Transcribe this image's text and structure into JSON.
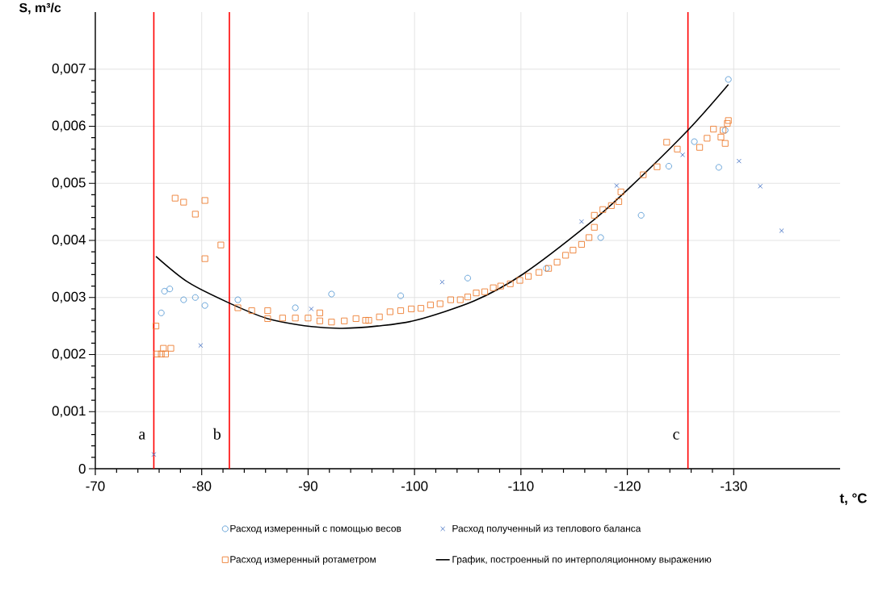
{
  "chart_data": {
    "type": "scatter",
    "xlabel": "t, °C",
    "ylabel": "S, m³/c",
    "xlim": [
      -70,
      -140
    ],
    "ylim": [
      0,
      0.008
    ],
    "xticks": [
      -70,
      -80,
      -90,
      -100,
      -110,
      -120,
      -130
    ],
    "yticks": [
      {
        "value": 0,
        "label": "0"
      },
      {
        "value": 0.001,
        "label": "0,001"
      },
      {
        "value": 0.002,
        "label": "0,002"
      },
      {
        "value": 0.003,
        "label": "0,003"
      },
      {
        "value": 0.004,
        "label": "0,004"
      },
      {
        "value": 0.005,
        "label": "0,005"
      },
      {
        "value": 0.006,
        "label": "0,006"
      },
      {
        "value": 0.007,
        "label": "0,007"
      }
    ],
    "grid": true,
    "legend": "bottom",
    "series": [
      {
        "name": "Расход измеренный с помощью весов",
        "marker": "circle",
        "color": "#5b9bd5",
        "x": [
          -76.2,
          -76.5,
          -77.0,
          -78.3,
          -79.4,
          -80.3,
          -83.4,
          -88.8,
          -92.2,
          -98.7,
          -105.0,
          -112.4,
          -117.5,
          -121.3,
          -123.9,
          -126.3,
          -128.6,
          -129.2,
          -129.5
        ],
        "values": [
          0.00273,
          0.00311,
          0.00315,
          0.00296,
          0.003,
          0.00286,
          0.00296,
          0.00282,
          0.00306,
          0.00303,
          0.00334,
          0.00351,
          0.00405,
          0.00444,
          0.0053,
          0.00573,
          0.00528,
          0.00593,
          0.00682
        ]
      },
      {
        "name": "Расход полученный из теплового баланса",
        "marker": "cross",
        "color": "#4472c4",
        "x": [
          -75.5,
          -79.9,
          -90.3,
          -102.6,
          -115.7,
          -119.0,
          -125.2,
          -130.5,
          -132.5,
          -134.5
        ],
        "values": [
          0.00025,
          0.00216,
          0.0028,
          0.00327,
          0.00433,
          0.00496,
          0.0055,
          0.00539,
          0.00495,
          0.00417
        ]
      },
      {
        "name": "Расход измеренный ротаметром",
        "marker": "square",
        "color": "#ed7d31",
        "x": [
          -75.7,
          -75.8,
          -76.2,
          -76.6,
          -76.4,
          -77.1,
          -77.5,
          -78.3,
          -79.4,
          -80.3,
          -80.3,
          -81.8,
          -83.4,
          -84.7,
          -86.2,
          -86.2,
          -87.6,
          -88.8,
          -90.0,
          -91.1,
          -91.1,
          -92.2,
          -93.4,
          -94.5,
          -95.4,
          -95.7,
          -96.7,
          -97.7,
          -98.7,
          -99.7,
          -100.6,
          -101.5,
          -102.4,
          -103.4,
          -104.3,
          -105.0,
          -105.8,
          -106.6,
          -107.4,
          -108.1,
          -109.0,
          -109.9,
          -110.7,
          -111.7,
          -112.6,
          -113.4,
          -114.2,
          -114.9,
          -115.7,
          -116.4,
          -116.9,
          -116.9,
          -117.7,
          -118.5,
          -119.2,
          -119.4,
          -121.5,
          -122.8,
          -123.7,
          -124.7,
          -126.8,
          -127.5,
          -128.1,
          -128.8,
          -129.2,
          -129.4,
          -129.5,
          -129.0
        ],
        "values": [
          0.0025,
          0.00201,
          0.00201,
          0.00201,
          0.00211,
          0.00211,
          0.00474,
          0.00467,
          0.00446,
          0.0047,
          0.00368,
          0.00392,
          0.00282,
          0.00277,
          0.00277,
          0.00263,
          0.00264,
          0.00264,
          0.00264,
          0.00273,
          0.00259,
          0.00257,
          0.00259,
          0.00263,
          0.0026,
          0.0026,
          0.00266,
          0.00275,
          0.00277,
          0.0028,
          0.00281,
          0.00287,
          0.00289,
          0.00296,
          0.00296,
          0.00301,
          0.00308,
          0.0031,
          0.00317,
          0.0032,
          0.00324,
          0.0033,
          0.00337,
          0.00344,
          0.00351,
          0.00362,
          0.00374,
          0.00383,
          0.00393,
          0.00405,
          0.00423,
          0.00444,
          0.00454,
          0.00461,
          0.00468,
          0.00485,
          0.00515,
          0.00529,
          0.00572,
          0.0056,
          0.00563,
          0.00579,
          0.00595,
          0.00581,
          0.0057,
          0.00605,
          0.0061,
          0.00593
        ]
      },
      {
        "name": "График, построенный по интерполяционному выражению",
        "type": "line",
        "marker": "none",
        "line_style": "solid",
        "color": "#000000",
        "x": [
          -75.7,
          -78.7,
          -82.5,
          -86.2,
          -90.3,
          -93.2,
          -96.5,
          -100.1,
          -105.6,
          -110.2,
          -116.4,
          -120.2,
          -125.8,
          -129.5
        ],
        "values": [
          0.00372,
          0.00327,
          0.00291,
          0.00263,
          0.00249,
          0.00246,
          0.0025,
          0.0026,
          0.00294,
          0.00341,
          0.00429,
          0.00492,
          0.00595,
          0.00673
        ]
      }
    ],
    "ref_lines": [
      {
        "axis": "x",
        "value": -75.5,
        "label": "a",
        "color": "#ff0000"
      },
      {
        "axis": "x",
        "value": -82.6,
        "label": "b",
        "color": "#ff0000"
      },
      {
        "axis": "x",
        "value": -125.7,
        "label": "c",
        "color": "#ff0000"
      }
    ]
  }
}
